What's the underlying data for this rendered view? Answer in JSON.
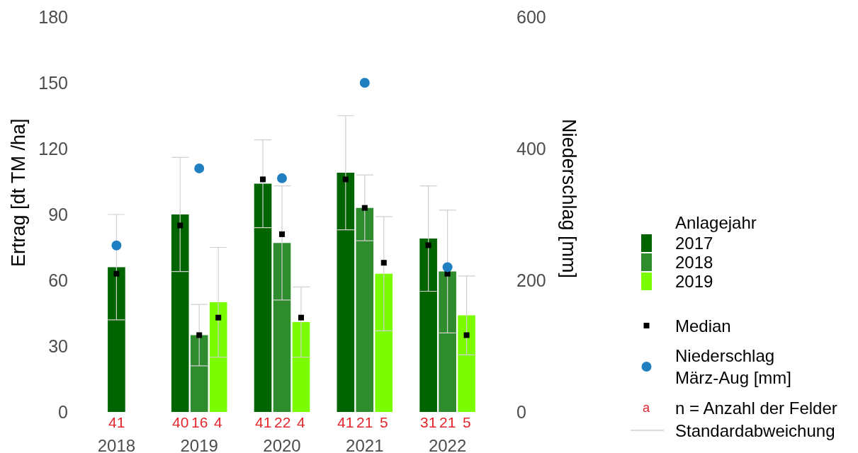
{
  "chart_data": {
    "type": "bar",
    "ylabel": "Ertrag [dt TM /ha]",
    "y2label": "Niederschlag [mm]",
    "legend_title": "Anlagejahr",
    "categories": [
      "2018",
      "2019",
      "2020",
      "2021",
      "2022"
    ],
    "series": [
      {
        "name": "2017",
        "color": "#006400",
        "values": [
          66,
          90,
          104,
          109,
          79
        ],
        "errors": [
          24,
          26,
          20,
          26,
          24
        ]
      },
      {
        "name": "2018",
        "color": "#2e8b2e",
        "values": [
          null,
          35,
          77,
          93,
          64
        ],
        "errors": [
          null,
          14,
          26,
          15,
          28
        ]
      },
      {
        "name": "2019",
        "color": "#7cfc00",
        "values": [
          null,
          50,
          41,
          63,
          44
        ],
        "errors": [
          null,
          25,
          16,
          26,
          18
        ]
      },
      {
        "name": "Median",
        "type": "scatter",
        "marker": "square",
        "color": "#000000",
        "values": [
          63,
          85,
          106,
          106,
          76
        ]
      },
      {
        "type": "scatter",
        "marker": "square",
        "color": "#000000",
        "values": [
          null,
          35,
          81,
          93,
          63
        ]
      },
      {
        "type": "scatter",
        "marker": "square",
        "color": "#000000",
        "values": [
          null,
          43,
          43,
          68,
          35
        ]
      },
      {
        "name": "Niederschlag\nMärz-Aug [mm]",
        "type": "scatter",
        "marker": "circle",
        "axis": "y2",
        "color": "#1f7fc1",
        "values": [
          253,
          370,
          355,
          500,
          220
        ]
      }
    ],
    "ylim": [
      0,
      180
    ],
    "yticks": [
      0,
      30,
      60,
      90,
      120,
      150,
      180
    ],
    "y2lim": [
      0,
      600
    ],
    "y2ticks": [
      0,
      200,
      400,
      600
    ],
    "annotations": [
      "41",
      "40",
      "16",
      "4",
      "41",
      "22",
      "4",
      "41",
      "21",
      "5",
      "31",
      "21",
      "5",
      "a",
      "n = Anzahl der Felder",
      "Standardabweichung"
    ],
    "legend": "right"
  }
}
